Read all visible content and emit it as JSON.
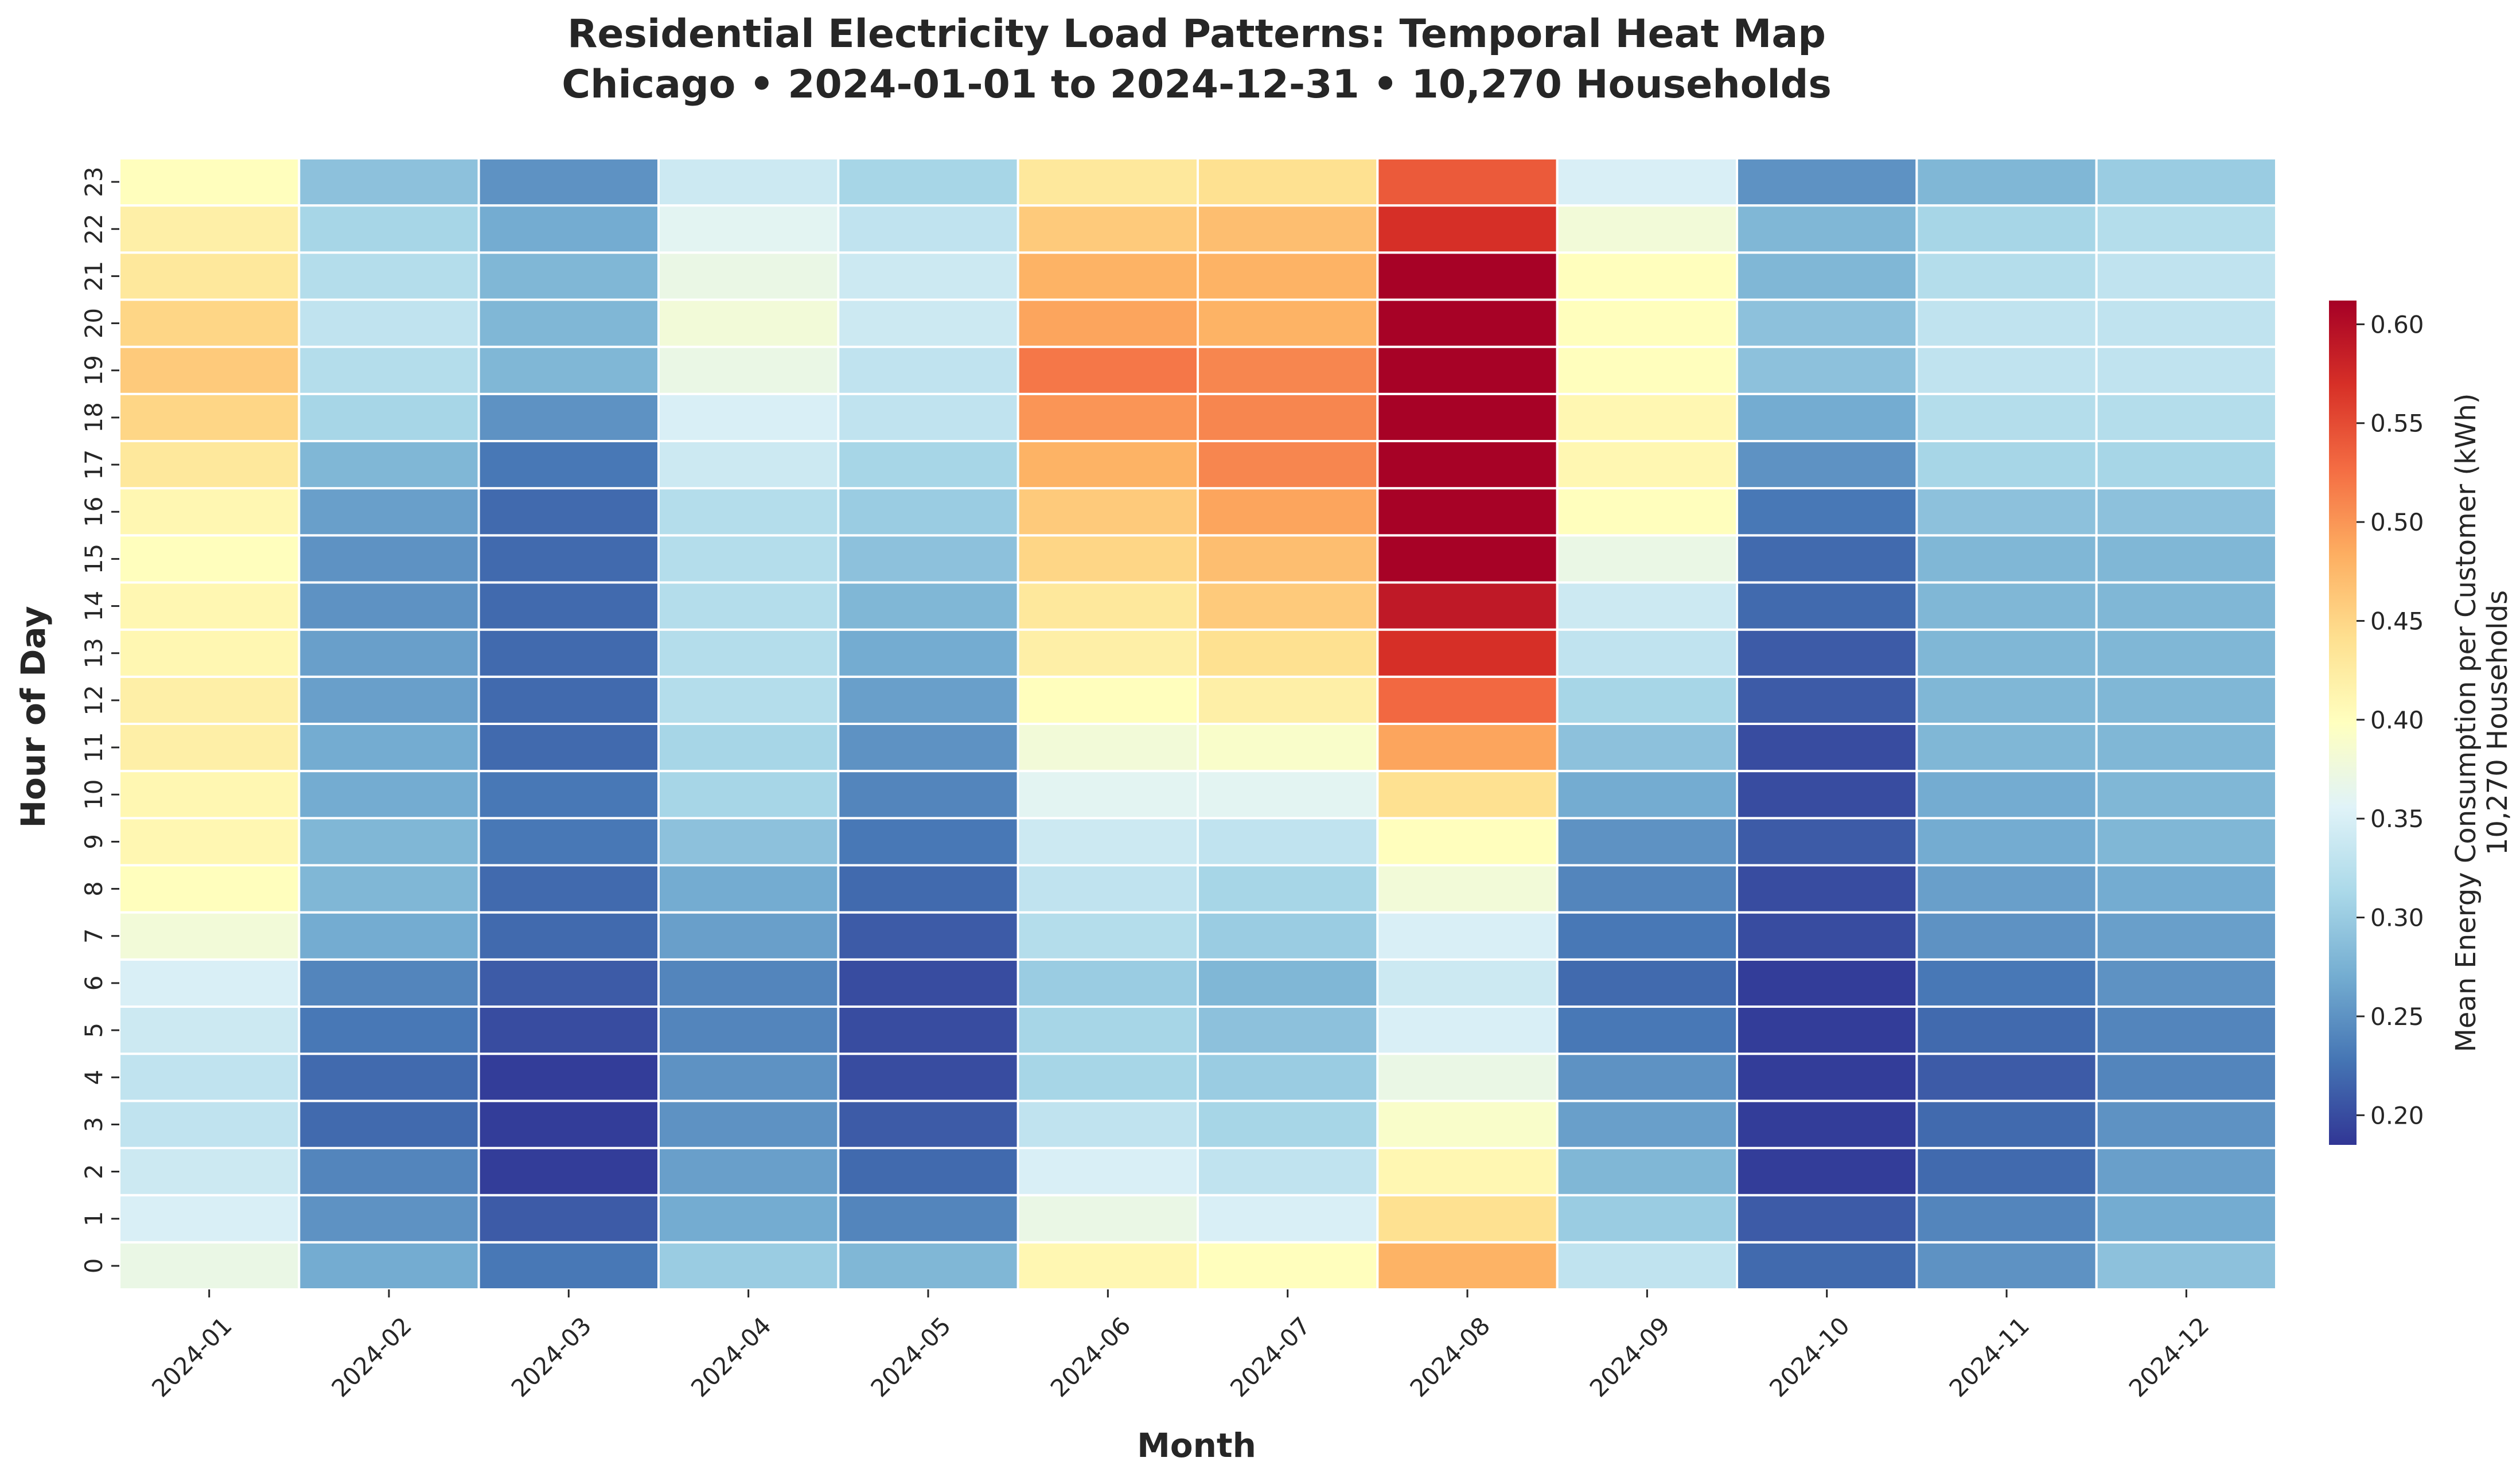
{
  "chart_data": {
    "type": "heatmap",
    "title": "Residential Electricity Load Patterns: Temporal Heat Map",
    "subtitle": "Chicago • 2024-01-01 to 2024-12-31 • 10,270 Households",
    "xlabel": "Month",
    "ylabel": "Hour of Day",
    "colorbar_label_line1": "Mean Energy Consumption per Customer (kWh)",
    "colorbar_label_line2": "10,270 Households",
    "colormap": "RdYlBu_r",
    "vmin": 0.185,
    "vmax": 0.612,
    "colorbar_ticks": [
      "0.20",
      "0.25",
      "0.30",
      "0.35",
      "0.40",
      "0.45",
      "0.50",
      "0.55",
      "0.60"
    ],
    "x_categories": [
      "2024-01",
      "2024-02",
      "2024-03",
      "2024-04",
      "2024-05",
      "2024-06",
      "2024-07",
      "2024-08",
      "2024-09",
      "2024-10",
      "2024-11",
      "2024-12"
    ],
    "y_categories": [
      "0",
      "1",
      "2",
      "3",
      "4",
      "5",
      "6",
      "7",
      "8",
      "9",
      "10",
      "11",
      "12",
      "13",
      "14",
      "15",
      "16",
      "17",
      "18",
      "19",
      "20",
      "21",
      "22",
      "23"
    ],
    "values_by_hour": [
      [
        0.37,
        0.27,
        0.23,
        0.3,
        0.28,
        0.41,
        0.4,
        0.48,
        0.33,
        0.22,
        0.25,
        0.29
      ],
      [
        0.35,
        0.25,
        0.21,
        0.27,
        0.24,
        0.37,
        0.35,
        0.44,
        0.3,
        0.21,
        0.24,
        0.27
      ],
      [
        0.34,
        0.24,
        0.19,
        0.26,
        0.22,
        0.35,
        0.33,
        0.41,
        0.28,
        0.19,
        0.22,
        0.26
      ],
      [
        0.33,
        0.22,
        0.19,
        0.25,
        0.21,
        0.33,
        0.31,
        0.39,
        0.26,
        0.19,
        0.22,
        0.25
      ],
      [
        0.33,
        0.22,
        0.19,
        0.25,
        0.2,
        0.31,
        0.3,
        0.37,
        0.25,
        0.19,
        0.21,
        0.24
      ],
      [
        0.34,
        0.23,
        0.2,
        0.24,
        0.2,
        0.31,
        0.29,
        0.35,
        0.23,
        0.19,
        0.22,
        0.24
      ],
      [
        0.35,
        0.24,
        0.21,
        0.24,
        0.2,
        0.3,
        0.28,
        0.34,
        0.22,
        0.19,
        0.23,
        0.25
      ],
      [
        0.38,
        0.27,
        0.22,
        0.26,
        0.21,
        0.32,
        0.3,
        0.35,
        0.23,
        0.2,
        0.25,
        0.26
      ],
      [
        0.4,
        0.28,
        0.22,
        0.27,
        0.22,
        0.33,
        0.31,
        0.38,
        0.24,
        0.2,
        0.26,
        0.27
      ],
      [
        0.41,
        0.28,
        0.23,
        0.29,
        0.23,
        0.34,
        0.33,
        0.4,
        0.25,
        0.21,
        0.27,
        0.28
      ],
      [
        0.41,
        0.27,
        0.23,
        0.31,
        0.24,
        0.36,
        0.36,
        0.44,
        0.27,
        0.2,
        0.27,
        0.28
      ],
      [
        0.42,
        0.27,
        0.22,
        0.31,
        0.25,
        0.38,
        0.39,
        0.49,
        0.29,
        0.2,
        0.28,
        0.28
      ],
      [
        0.42,
        0.26,
        0.22,
        0.32,
        0.26,
        0.4,
        0.42,
        0.53,
        0.31,
        0.21,
        0.28,
        0.28
      ],
      [
        0.41,
        0.26,
        0.22,
        0.32,
        0.27,
        0.42,
        0.44,
        0.57,
        0.33,
        0.21,
        0.28,
        0.28
      ],
      [
        0.41,
        0.25,
        0.22,
        0.32,
        0.28,
        0.43,
        0.46,
        0.59,
        0.34,
        0.22,
        0.28,
        0.28
      ],
      [
        0.4,
        0.25,
        0.22,
        0.32,
        0.29,
        0.45,
        0.47,
        0.61,
        0.37,
        0.22,
        0.28,
        0.28
      ],
      [
        0.41,
        0.26,
        0.22,
        0.32,
        0.3,
        0.46,
        0.49,
        0.61,
        0.4,
        0.23,
        0.29,
        0.29
      ],
      [
        0.43,
        0.28,
        0.23,
        0.34,
        0.31,
        0.48,
        0.51,
        0.61,
        0.41,
        0.25,
        0.31,
        0.31
      ],
      [
        0.45,
        0.31,
        0.25,
        0.35,
        0.33,
        0.5,
        0.51,
        0.61,
        0.41,
        0.27,
        0.32,
        0.32
      ],
      [
        0.46,
        0.32,
        0.28,
        0.37,
        0.33,
        0.52,
        0.51,
        0.61,
        0.4,
        0.29,
        0.33,
        0.33
      ],
      [
        0.45,
        0.33,
        0.28,
        0.38,
        0.34,
        0.49,
        0.48,
        0.61,
        0.4,
        0.29,
        0.33,
        0.33
      ],
      [
        0.43,
        0.32,
        0.28,
        0.37,
        0.34,
        0.48,
        0.48,
        0.61,
        0.4,
        0.28,
        0.32,
        0.33
      ],
      [
        0.42,
        0.31,
        0.27,
        0.36,
        0.33,
        0.46,
        0.47,
        0.57,
        0.38,
        0.28,
        0.31,
        0.32
      ],
      [
        0.4,
        0.29,
        0.25,
        0.34,
        0.31,
        0.43,
        0.44,
        0.54,
        0.35,
        0.25,
        0.28,
        0.3
      ]
    ]
  }
}
